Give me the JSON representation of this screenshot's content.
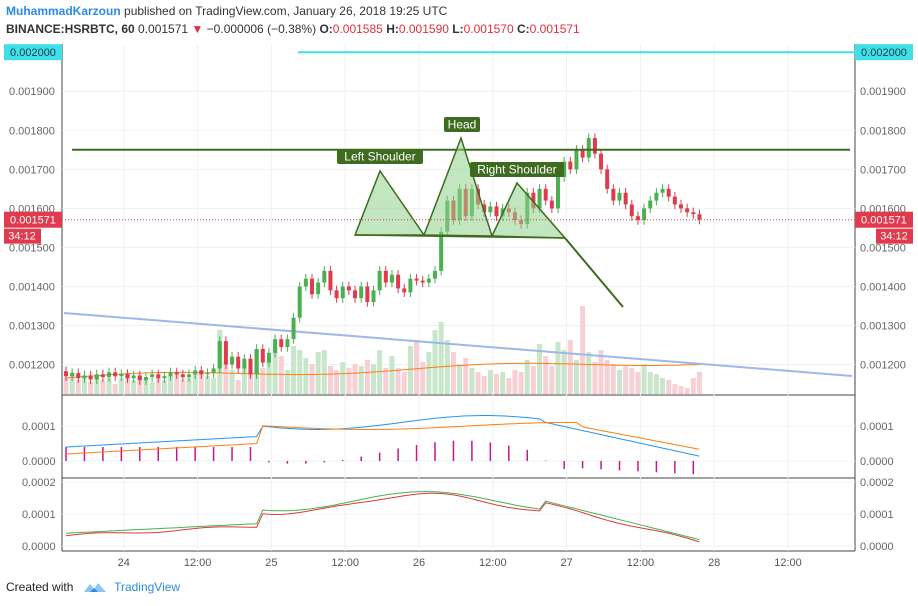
{
  "header": {
    "author": "MuhammadKarzoun",
    "published": "published on TradingView.com, January 26, 2018 19:25 UTC",
    "symbol": "BINANCE:HSRBTC, 60",
    "last": "0.001571",
    "arrow": "▼",
    "change": "−0.000006 (−0.38%)",
    "o_label": "O:",
    "o_value": "0.001585",
    "h_label": "H:",
    "h_value": "0.001590",
    "l_label": "L:",
    "l_value": "0.001570",
    "c_label": "C:",
    "c_value": "0.001571"
  },
  "footer": {
    "created_with": "Created with",
    "brand": "TradingView"
  },
  "colors": {
    "up": "#4caf50",
    "down": "#e03a4e",
    "neckline": "#3d6b1f",
    "pattern_fill": "#8fd18a",
    "trendline": "#9db8e8",
    "resistance": "#40e0e8",
    "macd": "#2196f3",
    "signal": "#ff7f0e",
    "hist": "#c2188f",
    "rsi_a": "#4caf50",
    "rsi_b": "#e03a3a"
  },
  "chart_data": {
    "type": "candlestick",
    "price_axis": {
      "ticks": [
        "0.001900",
        "0.001800",
        "0.001700",
        "0.001600",
        "0.001500",
        "0.001400",
        "0.001300",
        "0.001200"
      ],
      "tick_values": [
        0.0019,
        0.0018,
        0.0017,
        0.0016,
        0.0015,
        0.0014,
        0.0013,
        0.0012
      ],
      "range": [
        0.001122,
        0.002021
      ],
      "current_price_label": "0.001571",
      "current_price": 0.001571,
      "countdown": "34:12",
      "resistance_label": "0.002000",
      "resistance_price": 0.002
    },
    "time_axis": {
      "labels": [
        "24",
        "12:00",
        "25",
        "12:00",
        "26",
        "12:00",
        "27",
        "12:00",
        "28",
        "12:00"
      ],
      "label_positions_h": [
        12,
        24,
        36,
        48,
        60,
        72,
        84,
        96,
        108,
        120
      ]
    },
    "candles_open_close": [
      [
        0.001183,
        0.00117
      ],
      [
        0.00117,
        0.001178
      ],
      [
        0.001178,
        0.001165
      ],
      [
        0.001165,
        0.001172
      ],
      [
        0.001172,
        0.001162
      ],
      [
        0.001162,
        0.001175
      ],
      [
        0.001175,
        0.001168
      ],
      [
        0.001168,
        0.00118
      ],
      [
        0.00118,
        0.00117
      ],
      [
        0.00117,
        0.001176
      ],
      [
        0.001176,
        0.001165
      ],
      [
        0.001165,
        0.001172
      ],
      [
        0.001172,
        0.00116
      ],
      [
        0.00116,
        0.001168
      ],
      [
        0.001168,
        0.001175
      ],
      [
        0.001175,
        0.001165
      ],
      [
        0.001165,
        0.00117
      ],
      [
        0.00117,
        0.00118
      ],
      [
        0.00118,
        0.001175
      ],
      [
        0.001175,
        0.001168
      ],
      [
        0.001168,
        0.001175
      ],
      [
        0.001175,
        0.001185
      ],
      [
        0.001185,
        0.001175
      ],
      [
        0.001175,
        0.001178
      ],
      [
        0.001178,
        0.00119
      ],
      [
        0.00119,
        0.00126
      ],
      [
        0.00126,
        0.0012
      ],
      [
        0.0012,
        0.00122
      ],
      [
        0.00122,
        0.00119
      ],
      [
        0.00119,
        0.001215
      ],
      [
        0.001215,
        0.001175
      ],
      [
        0.001175,
        0.00124
      ],
      [
        0.00124,
        0.001205
      ],
      [
        0.001205,
        0.00123
      ],
      [
        0.00123,
        0.001265
      ],
      [
        0.001265,
        0.001245
      ],
      [
        0.001245,
        0.001265
      ],
      [
        0.001265,
        0.00132
      ],
      [
        0.00132,
        0.0014
      ],
      [
        0.0014,
        0.00142
      ],
      [
        0.00142,
        0.00138
      ],
      [
        0.00138,
        0.00141
      ],
      [
        0.00141,
        0.00144
      ],
      [
        0.00144,
        0.00139
      ],
      [
        0.00139,
        0.00137
      ],
      [
        0.00137,
        0.0014
      ],
      [
        0.0014,
        0.00139
      ],
      [
        0.00139,
        0.00137
      ],
      [
        0.00137,
        0.0014
      ],
      [
        0.0014,
        0.00136
      ],
      [
        0.00136,
        0.00139
      ],
      [
        0.00139,
        0.00144
      ],
      [
        0.00144,
        0.00141
      ],
      [
        0.00141,
        0.00143
      ],
      [
        0.00143,
        0.001395
      ],
      [
        0.001395,
        0.001385
      ],
      [
        0.001385,
        0.00142
      ],
      [
        0.00142,
        0.001415
      ],
      [
        0.001415,
        0.00141
      ],
      [
        0.00141,
        0.00142
      ],
      [
        0.00142,
        0.00144
      ],
      [
        0.00144,
        0.00154
      ],
      [
        0.00154,
        0.00162
      ],
      [
        0.00162,
        0.00157
      ],
      [
        0.00157,
        0.00165
      ],
      [
        0.00165,
        0.00158
      ],
      [
        0.00158,
        0.00165
      ],
      [
        0.00165,
        0.00161
      ],
      [
        0.00161,
        0.00159
      ],
      [
        0.00159,
        0.001605
      ],
      [
        0.001605,
        0.00158
      ],
      [
        0.00158,
        0.0016
      ],
      [
        0.0016,
        0.00159
      ],
      [
        0.00159,
        0.00157
      ],
      [
        0.00157,
        0.00156
      ],
      [
        0.00156,
        0.00164
      ],
      [
        0.00164,
        0.0016
      ],
      [
        0.0016,
        0.00165
      ],
      [
        0.00165,
        0.00162
      ],
      [
        0.00162,
        0.0016
      ],
      [
        0.0016,
        0.00168
      ],
      [
        0.00168,
        0.00172
      ],
      [
        0.00172,
        0.0017
      ],
      [
        0.0017,
        0.00175
      ],
      [
        0.00175,
        0.00173
      ],
      [
        0.00173,
        0.00178
      ],
      [
        0.00178,
        0.00174
      ],
      [
        0.00174,
        0.0017
      ],
      [
        0.0017,
        0.00165
      ],
      [
        0.00165,
        0.00162
      ],
      [
        0.00162,
        0.00164
      ],
      [
        0.00164,
        0.00161
      ],
      [
        0.00161,
        0.00158
      ],
      [
        0.00158,
        0.00157
      ],
      [
        0.00157,
        0.0016
      ],
      [
        0.0016,
        0.00162
      ],
      [
        0.00162,
        0.00164
      ],
      [
        0.00164,
        0.00165
      ],
      [
        0.00165,
        0.00163
      ],
      [
        0.00163,
        0.00161
      ],
      [
        0.00161,
        0.0016
      ],
      [
        0.0016,
        0.00159
      ],
      [
        0.00159,
        0.001585
      ],
      [
        0.001585,
        0.001571
      ]
    ],
    "pattern": {
      "neckline_price": 0.00175,
      "labels": [
        "Left Shoulder",
        "Head",
        "Right Shoulder"
      ],
      "triangles_price": [
        [
          [
            0.00154,
            0.00154
          ],
          [
            0.00172,
            0.00172
          ],
          [
            0.00154,
            0.00154
          ]
        ],
        [
          [
            0.00154,
            0.00154
          ],
          [
            0.0018,
            0.0018
          ],
          [
            0.00153,
            0.00153
          ]
        ],
        [
          [
            0.00153,
            0.00153
          ],
          [
            0.00168,
            0.00168
          ],
          [
            0.00153,
            0.00153
          ]
        ]
      ],
      "projection_end_price": 0.00135
    },
    "macd_axis": {
      "ticks": [
        "0.0001",
        "0.0000"
      ],
      "tick_values": [
        0.0001,
        0.0
      ]
    },
    "rsi_axis": {
      "ticks": [
        "0.0002",
        "0.0001",
        "0.0000"
      ],
      "tick_values": [
        0.0002,
        0.0001,
        0.0
      ]
    }
  }
}
